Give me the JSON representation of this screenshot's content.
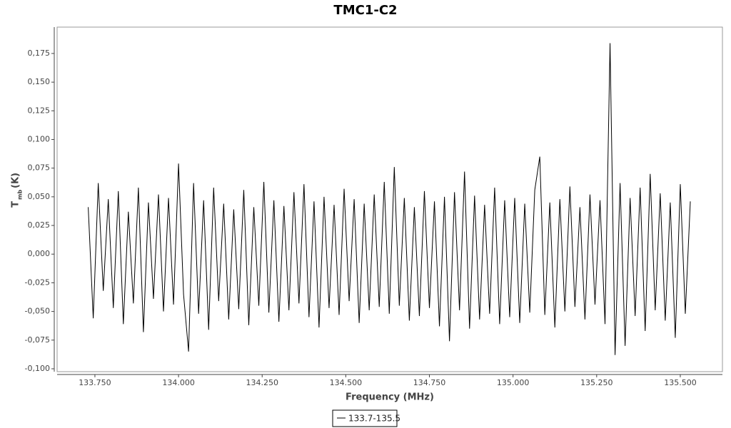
{
  "chart_data": {
    "type": "line",
    "title": "TMC1-C2",
    "x_label": "Frequency (MHz)",
    "y_label": "T",
    "y_label_sub": "mb",
    "y_label_unit": "(K)",
    "x": [
      133.73,
      133.745,
      133.76,
      133.775,
      133.79,
      133.805,
      133.82,
      133.835,
      133.85,
      133.865,
      133.88,
      133.895,
      133.91,
      133.925,
      133.94,
      133.955,
      133.97,
      133.985,
      134.0,
      134.015,
      134.03,
      134.045,
      134.06,
      134.075,
      134.09,
      134.105,
      134.12,
      134.135,
      134.15,
      134.165,
      134.18,
      134.195,
      134.21,
      134.225,
      134.24,
      134.255,
      134.27,
      134.285,
      134.3,
      134.315,
      134.33,
      134.345,
      134.36,
      134.375,
      134.39,
      134.405,
      134.42,
      134.435,
      134.45,
      134.465,
      134.48,
      134.495,
      134.51,
      134.525,
      134.54,
      134.555,
      134.57,
      134.585,
      134.6,
      134.615,
      134.63,
      134.645,
      134.66,
      134.675,
      134.69,
      134.705,
      134.72,
      134.735,
      134.75,
      134.765,
      134.78,
      134.795,
      134.81,
      134.825,
      134.84,
      134.855,
      134.87,
      134.885,
      134.9,
      134.915,
      134.93,
      134.945,
      134.96,
      134.975,
      134.99,
      135.005,
      135.02,
      135.035,
      135.05,
      135.065,
      135.08,
      135.095,
      135.11,
      135.125,
      135.14,
      135.155,
      135.17,
      135.185,
      135.2,
      135.215,
      135.23,
      135.245,
      135.26,
      135.275,
      135.29,
      135.305,
      135.32,
      135.335,
      135.35,
      135.365,
      135.38,
      135.395,
      135.41,
      135.425,
      135.44,
      135.455,
      135.47,
      135.485,
      135.5,
      135.515,
      135.53
    ],
    "series": [
      {
        "name": "133.7-135.5",
        "color": "#000000",
        "values": [
          0.041,
          -0.056,
          0.062,
          -0.032,
          0.048,
          -0.047,
          0.055,
          -0.061,
          0.037,
          -0.043,
          0.058,
          -0.068,
          0.045,
          -0.039,
          0.052,
          -0.05,
          0.049,
          -0.044,
          0.079,
          -0.035,
          -0.085,
          0.062,
          -0.052,
          0.047,
          -0.066,
          0.058,
          -0.041,
          0.044,
          -0.057,
          0.039,
          -0.048,
          0.056,
          -0.062,
          0.041,
          -0.045,
          0.063,
          -0.051,
          0.047,
          -0.059,
          0.042,
          -0.049,
          0.054,
          -0.043,
          0.061,
          -0.055,
          0.046,
          -0.064,
          0.05,
          -0.047,
          0.043,
          -0.053,
          0.057,
          -0.041,
          0.048,
          -0.06,
          0.044,
          -0.049,
          0.052,
          -0.046,
          0.063,
          -0.052,
          0.076,
          -0.045,
          0.049,
          -0.058,
          0.041,
          -0.054,
          0.055,
          -0.047,
          0.046,
          -0.063,
          0.05,
          -0.076,
          0.054,
          -0.049,
          0.072,
          -0.065,
          0.051,
          -0.057,
          0.043,
          -0.052,
          0.058,
          -0.061,
          0.047,
          -0.055,
          0.049,
          -0.06,
          0.044,
          -0.051,
          0.056,
          0.085,
          -0.053,
          0.045,
          -0.064,
          0.048,
          -0.05,
          0.059,
          -0.046,
          0.041,
          -0.057,
          0.052,
          -0.044,
          0.047,
          -0.061,
          0.184,
          -0.088,
          0.062,
          -0.08,
          0.049,
          -0.054,
          0.058,
          -0.067,
          0.07,
          -0.049,
          0.053,
          -0.058,
          0.045,
          -0.073,
          0.061,
          -0.052,
          0.046
        ]
      }
    ],
    "xlim": [
      133.637,
      135.626
    ],
    "ylim": [
      -0.1025,
      0.198
    ],
    "xticks": [
      {
        "value": 133.75,
        "label": "133.750"
      },
      {
        "value": 134.0,
        "label": "134.000"
      },
      {
        "value": 134.25,
        "label": "134.250"
      },
      {
        "value": 134.5,
        "label": "134.500"
      },
      {
        "value": 134.75,
        "label": "134.750"
      },
      {
        "value": 135.0,
        "label": "135.000"
      },
      {
        "value": 135.25,
        "label": "135.250"
      },
      {
        "value": 135.5,
        "label": "135.500"
      }
    ],
    "yticks": [
      {
        "value": -0.1,
        "label": "-0,100"
      },
      {
        "value": -0.075,
        "label": "-0,075"
      },
      {
        "value": -0.05,
        "label": "-0,050"
      },
      {
        "value": -0.025,
        "label": "-0,025"
      },
      {
        "value": 0,
        "label": "0,000"
      },
      {
        "value": 0.025,
        "label": "0,025"
      },
      {
        "value": 0.05,
        "label": "0,050"
      },
      {
        "value": 0.075,
        "label": "0,075"
      },
      {
        "value": 0.1,
        "label": "0,100"
      },
      {
        "value": 0.125,
        "label": "0,125"
      },
      {
        "value": 0.15,
        "label": "0,150"
      },
      {
        "value": 0.175,
        "label": "0,175"
      }
    ],
    "grid": false
  }
}
